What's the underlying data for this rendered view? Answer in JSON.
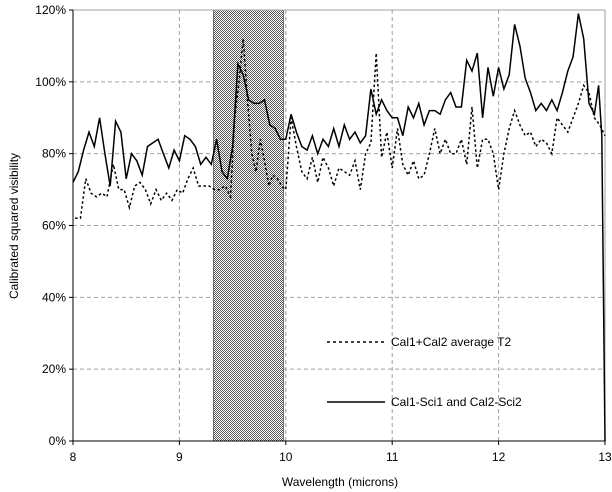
{
  "chart_data": {
    "type": "line",
    "title": "",
    "xlabel": "Wavelength (microns)",
    "ylabel": "Calibrated squared visibility",
    "xlim": [
      8,
      13
    ],
    "ylim": [
      0,
      120
    ],
    "x_ticks": [
      "8",
      "9",
      "10",
      "11",
      "12",
      "13"
    ],
    "y_ticks": [
      "0%",
      "20%",
      "40%",
      "60%",
      "80%",
      "100%",
      "120%"
    ],
    "grid": "dashed, both axes",
    "legend_placement": "center-right",
    "shaded_region": {
      "x_start": 9.32,
      "x_end": 9.98,
      "pattern": "checkered gray"
    },
    "colors": {
      "line": "#000000",
      "grid": "#a0a0a0",
      "shade_dark": "#5a5a5a",
      "shade_light": "#ffffff"
    },
    "series": [
      {
        "name": "Cal1+Cal2 average T2",
        "style": "dotted",
        "points": [
          [
            8.02,
            62
          ],
          [
            8.07,
            62
          ],
          [
            8.12,
            73
          ],
          [
            8.17,
            69
          ],
          [
            8.22,
            68
          ],
          [
            8.27,
            69
          ],
          [
            8.32,
            68
          ],
          [
            8.38,
            77
          ],
          [
            8.43,
            70
          ],
          [
            8.48,
            70
          ],
          [
            8.53,
            65
          ],
          [
            8.58,
            71
          ],
          [
            8.63,
            72
          ],
          [
            8.68,
            70
          ],
          [
            8.73,
            66
          ],
          [
            8.78,
            70
          ],
          [
            8.83,
            67
          ],
          [
            8.88,
            69
          ],
          [
            8.93,
            67
          ],
          [
            8.98,
            70
          ],
          [
            9.03,
            69
          ],
          [
            9.08,
            73
          ],
          [
            9.13,
            76
          ],
          [
            9.18,
            71
          ],
          [
            9.23,
            71
          ],
          [
            9.28,
            71
          ],
          [
            9.33,
            70
          ],
          [
            9.38,
            70
          ],
          [
            9.43,
            71
          ],
          [
            9.48,
            68
          ],
          [
            9.52,
            90
          ],
          [
            9.56,
            100
          ],
          [
            9.6,
            112
          ],
          [
            9.64,
            95
          ],
          [
            9.68,
            80
          ],
          [
            9.72,
            75
          ],
          [
            9.76,
            84
          ],
          [
            9.8,
            78
          ],
          [
            9.84,
            71
          ],
          [
            9.88,
            74
          ],
          [
            9.92,
            73
          ],
          [
            9.96,
            71
          ],
          [
            10.0,
            70
          ],
          [
            10.05,
            90
          ],
          [
            10.1,
            82
          ],
          [
            10.15,
            75
          ],
          [
            10.2,
            73
          ],
          [
            10.25,
            79
          ],
          [
            10.3,
            72
          ],
          [
            10.35,
            79
          ],
          [
            10.4,
            76
          ],
          [
            10.45,
            71
          ],
          [
            10.5,
            76
          ],
          [
            10.55,
            75
          ],
          [
            10.6,
            74
          ],
          [
            10.65,
            78
          ],
          [
            10.7,
            70
          ],
          [
            10.75,
            80
          ],
          [
            10.8,
            83
          ],
          [
            10.85,
            108
          ],
          [
            10.9,
            79
          ],
          [
            10.95,
            86
          ],
          [
            11.0,
            76
          ],
          [
            11.05,
            87
          ],
          [
            11.1,
            77
          ],
          [
            11.15,
            74
          ],
          [
            11.2,
            78
          ],
          [
            11.25,
            73
          ],
          [
            11.3,
            74
          ],
          [
            11.35,
            80
          ],
          [
            11.4,
            87
          ],
          [
            11.45,
            80
          ],
          [
            11.5,
            84
          ],
          [
            11.55,
            80
          ],
          [
            11.6,
            80
          ],
          [
            11.65,
            84
          ],
          [
            11.7,
            77
          ],
          [
            11.75,
            93
          ],
          [
            11.8,
            76
          ],
          [
            11.85,
            84
          ],
          [
            11.9,
            84
          ],
          [
            11.95,
            80
          ],
          [
            12.0,
            70
          ],
          [
            12.05,
            80
          ],
          [
            12.1,
            87
          ],
          [
            12.15,
            92
          ],
          [
            12.2,
            88
          ],
          [
            12.25,
            85
          ],
          [
            12.3,
            86
          ],
          [
            12.35,
            82
          ],
          [
            12.4,
            84
          ],
          [
            12.45,
            83
          ],
          [
            12.5,
            80
          ],
          [
            12.55,
            90
          ],
          [
            12.6,
            88
          ],
          [
            12.65,
            86
          ],
          [
            12.7,
            90
          ],
          [
            12.75,
            94
          ],
          [
            12.8,
            99
          ],
          [
            12.85,
            97
          ],
          [
            12.9,
            90
          ],
          [
            12.95,
            88
          ],
          [
            13.0,
            85
          ]
        ]
      },
      {
        "name": "Cal1-Sci1 and Cal2-Sci2",
        "style": "solid",
        "points": [
          [
            8.0,
            72
          ],
          [
            8.05,
            75
          ],
          [
            8.1,
            81
          ],
          [
            8.15,
            86
          ],
          [
            8.2,
            82
          ],
          [
            8.25,
            90
          ],
          [
            8.3,
            80
          ],
          [
            8.35,
            71
          ],
          [
            8.4,
            89
          ],
          [
            8.45,
            86
          ],
          [
            8.5,
            73
          ],
          [
            8.55,
            80
          ],
          [
            8.6,
            78
          ],
          [
            8.65,
            74
          ],
          [
            8.7,
            82
          ],
          [
            8.75,
            83
          ],
          [
            8.8,
            84
          ],
          [
            8.85,
            80
          ],
          [
            8.9,
            76
          ],
          [
            8.95,
            81
          ],
          [
            9.0,
            78
          ],
          [
            9.05,
            85
          ],
          [
            9.1,
            84
          ],
          [
            9.15,
            82
          ],
          [
            9.2,
            77
          ],
          [
            9.25,
            79
          ],
          [
            9.3,
            77
          ],
          [
            9.35,
            84
          ],
          [
            9.4,
            75
          ],
          [
            9.45,
            73
          ],
          [
            9.5,
            82
          ],
          [
            9.55,
            105
          ],
          [
            9.6,
            102
          ],
          [
            9.65,
            95
          ],
          [
            9.7,
            94
          ],
          [
            9.75,
            94
          ],
          [
            9.8,
            95
          ],
          [
            9.85,
            88
          ],
          [
            9.9,
            87
          ],
          [
            9.95,
            84
          ],
          [
            10.0,
            84
          ],
          [
            10.05,
            91
          ],
          [
            10.1,
            86
          ],
          [
            10.15,
            82
          ],
          [
            10.2,
            81
          ],
          [
            10.25,
            85
          ],
          [
            10.3,
            80
          ],
          [
            10.35,
            84
          ],
          [
            10.4,
            82
          ],
          [
            10.45,
            87
          ],
          [
            10.5,
            82
          ],
          [
            10.55,
            88
          ],
          [
            10.6,
            84
          ],
          [
            10.65,
            86
          ],
          [
            10.7,
            83
          ],
          [
            10.75,
            85
          ],
          [
            10.8,
            98
          ],
          [
            10.85,
            91
          ],
          [
            10.9,
            95
          ],
          [
            10.95,
            92
          ],
          [
            11.0,
            90
          ],
          [
            11.05,
            90
          ],
          [
            11.1,
            85
          ],
          [
            11.15,
            93
          ],
          [
            11.2,
            90
          ],
          [
            11.25,
            94
          ],
          [
            11.3,
            88
          ],
          [
            11.35,
            92
          ],
          [
            11.4,
            92
          ],
          [
            11.45,
            91
          ],
          [
            11.5,
            95
          ],
          [
            11.55,
            97
          ],
          [
            11.6,
            93
          ],
          [
            11.65,
            93
          ],
          [
            11.7,
            106
          ],
          [
            11.75,
            103
          ],
          [
            11.8,
            108
          ],
          [
            11.85,
            90
          ],
          [
            11.9,
            104
          ],
          [
            11.95,
            96
          ],
          [
            12.0,
            104
          ],
          [
            12.05,
            98
          ],
          [
            12.1,
            102
          ],
          [
            12.15,
            116
          ],
          [
            12.2,
            110
          ],
          [
            12.25,
            101
          ],
          [
            12.3,
            97
          ],
          [
            12.35,
            92
          ],
          [
            12.4,
            94
          ],
          [
            12.45,
            92
          ],
          [
            12.5,
            95
          ],
          [
            12.55,
            92
          ],
          [
            12.6,
            97
          ],
          [
            12.65,
            103
          ],
          [
            12.7,
            107
          ],
          [
            12.75,
            119
          ],
          [
            12.8,
            112
          ],
          [
            12.85,
            94
          ],
          [
            12.9,
            91
          ],
          [
            12.94,
            99
          ],
          [
            12.97,
            85
          ],
          [
            13.0,
            0
          ]
        ]
      }
    ]
  }
}
